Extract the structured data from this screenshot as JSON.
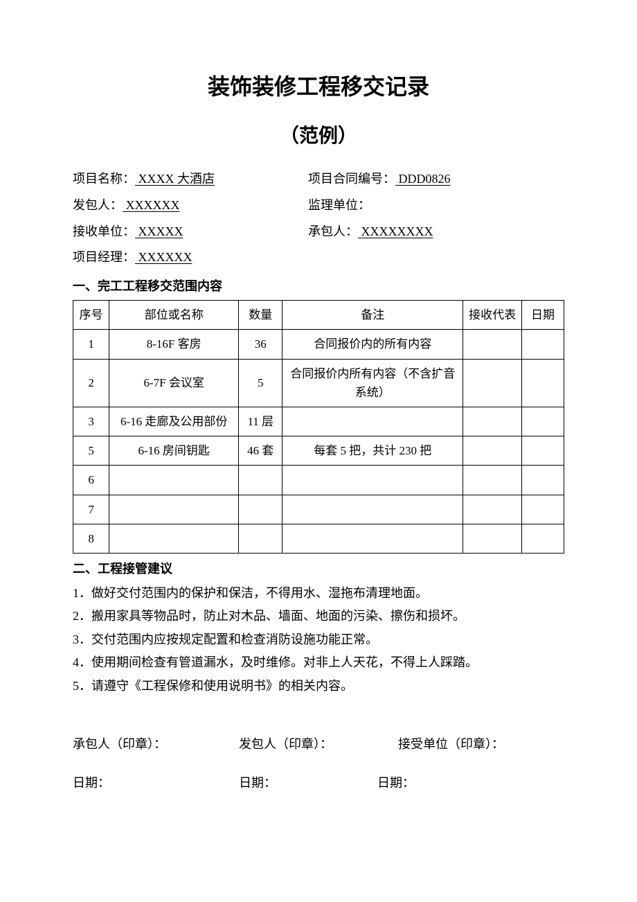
{
  "title_main": "装饰装修工程移交记录",
  "title_sub": "（范例）",
  "info": {
    "project_name_label": "项目名称：",
    "project_name_value": "   XXXX 大酒店   ",
    "contract_no_label": "项目合同编号：",
    "contract_no_value": "  DDD0826         ",
    "client_label": "发包人：",
    "client_value": "  XXXXXX                   ",
    "supervisor_label": "监理单位：",
    "supervisor_value": "                                  ",
    "receiver_label": "接收单位：",
    "receiver_value": "    XXXXX          ",
    "contractor_label": "承包人：",
    "contractor_value": "    XXXXXXXX           ",
    "pm_label": "项目经理：",
    "pm_value": "     XXXXXX          "
  },
  "section1_heading": "一、完工工程移交范围内容",
  "table": {
    "columns": [
      "序号",
      "部位或名称",
      "数量",
      "备注",
      "接收代表",
      "日期"
    ],
    "rows": [
      [
        "1",
        "8-16F 客房",
        "36",
        "合同报价内的所有内容",
        "",
        ""
      ],
      [
        "2",
        "6-7F 会议室",
        "5",
        "合同报价内所有内容（不含扩音系统）",
        "",
        ""
      ],
      [
        "3",
        "6-16 走廊及公用部份",
        "11 层",
        "",
        "",
        ""
      ],
      [
        "5",
        "6-16 房间钥匙",
        "46 套",
        "每套 5 把，共计 230 把",
        "",
        ""
      ],
      [
        "6",
        "",
        "",
        "",
        "",
        ""
      ],
      [
        "7",
        "",
        "",
        "",
        "",
        ""
      ],
      [
        "8",
        "",
        "",
        "",
        "",
        ""
      ]
    ]
  },
  "section2_heading": "二、工程接管建议",
  "suggestions": [
    "1．做好交付范围内的保护和保洁，不得用水、湿拖布清理地面。",
    "2．搬用家具等物品时，防止对木品、墙面、地面的污染、擦伤和损坏。",
    "3．交付范围内应按规定配置和检查消防设施功能正常。",
    "4．使用期间检查有管道漏水，及时维修。对非上人天花，不得上人踩踏。",
    "5．请遵守《工程保修和使用说明书》的相关内容。"
  ],
  "signatures": {
    "contractor": "承包人（印章）：",
    "client": "发包人（印章）：",
    "receiver": "接受单位（印章）：",
    "date_label": "日期："
  }
}
